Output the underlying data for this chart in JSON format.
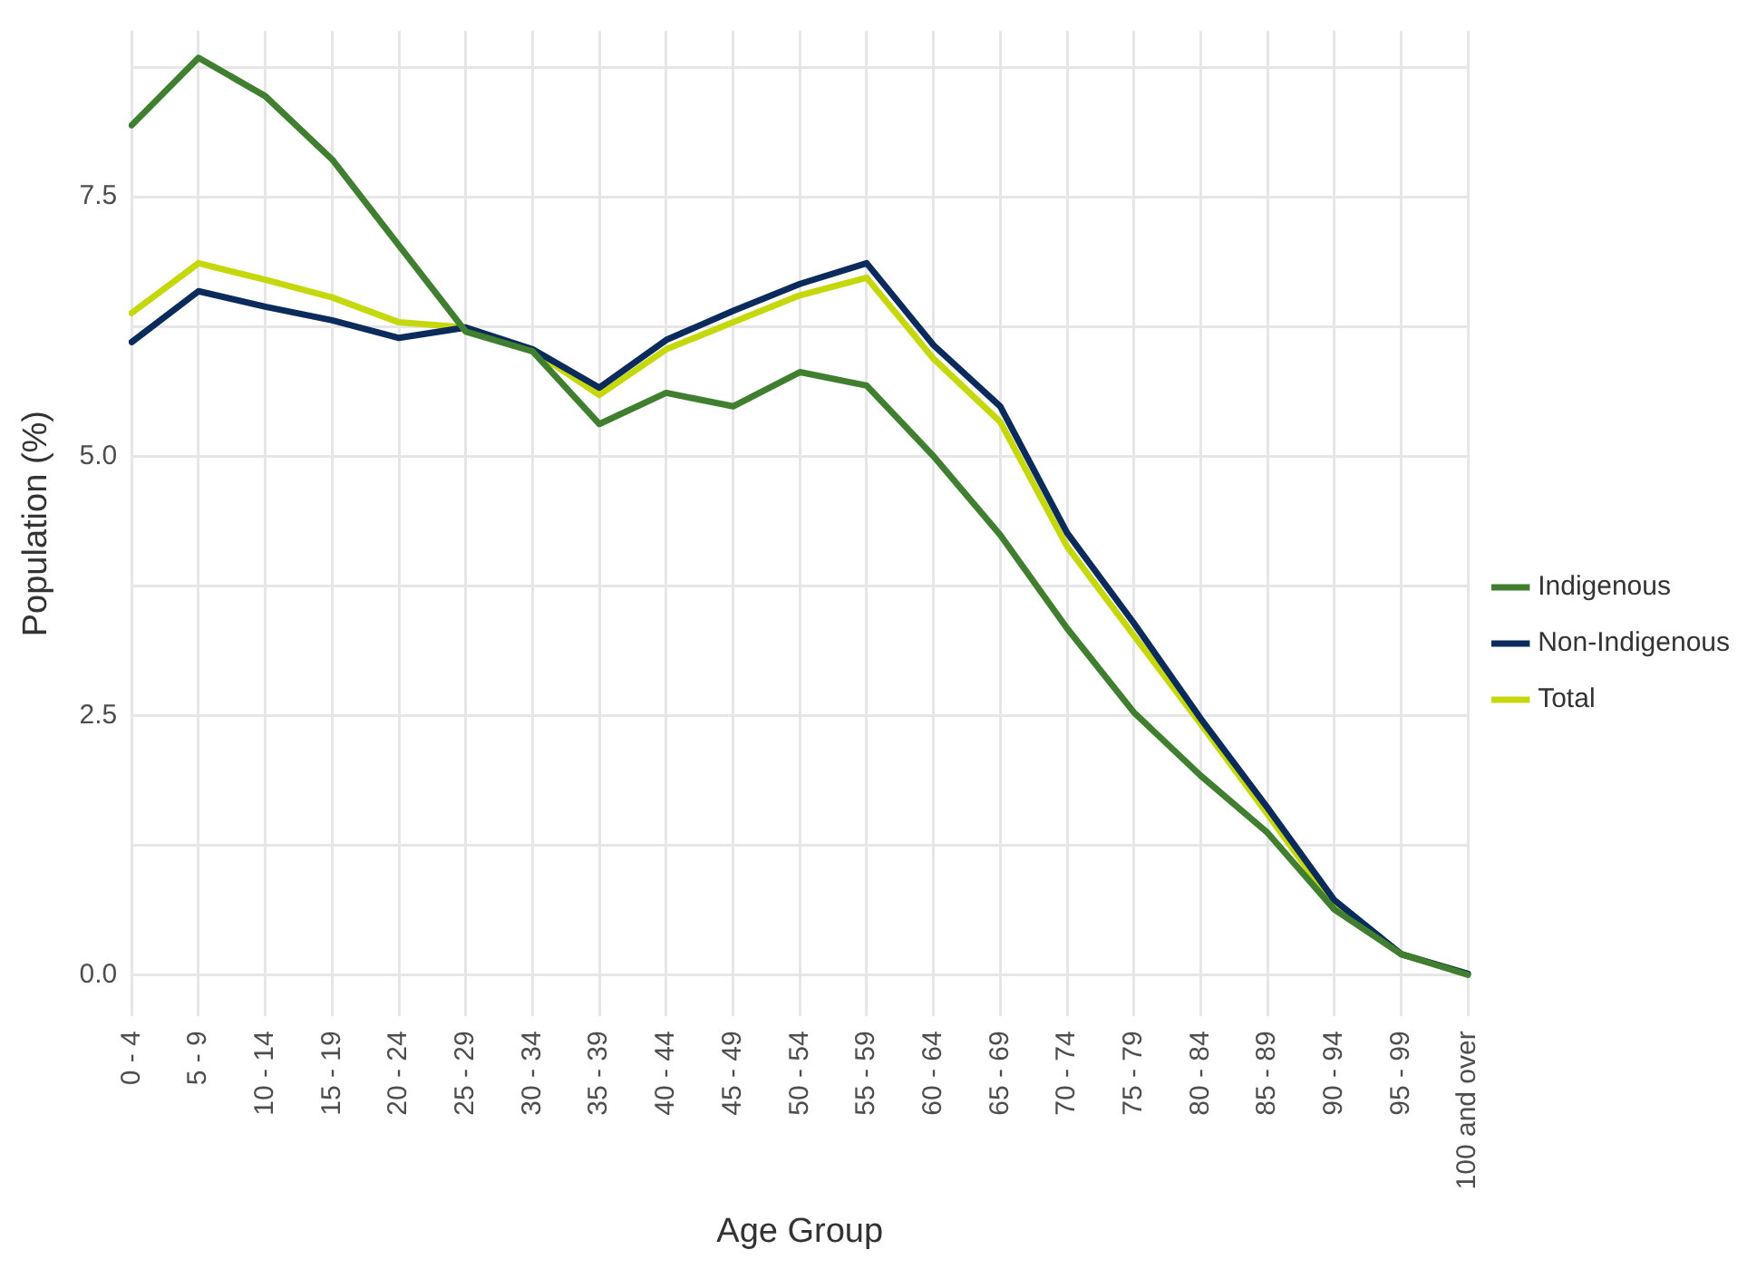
{
  "chart_data": {
    "type": "line",
    "xlabel": "Age Group",
    "ylabel": "Population (%)",
    "categories": [
      "0 - 4",
      "5 - 9",
      "10 - 14",
      "15 - 19",
      "20 - 24",
      "25 - 29",
      "30 - 34",
      "35 - 39",
      "40 - 44",
      "45 - 49",
      "50 - 54",
      "55 - 59",
      "60 - 64",
      "65 - 69",
      "70 - 74",
      "75 - 79",
      "80 - 84",
      "85 - 89",
      "90 - 94",
      "95 - 99",
      "100 and over"
    ],
    "series": [
      {
        "name": "Indigenous",
        "color": "#3f7f2f",
        "values": [
          8.19,
          8.84,
          8.47,
          7.86,
          7.03,
          6.2,
          6.01,
          5.31,
          5.61,
          5.48,
          5.81,
          5.68,
          5.0,
          4.24,
          3.34,
          2.53,
          1.92,
          1.37,
          0.63,
          0.2,
          0.0
        ]
      },
      {
        "name": "Non-Indigenous",
        "color": "#0a2b5c",
        "values": [
          6.1,
          6.59,
          6.44,
          6.31,
          6.14,
          6.24,
          6.03,
          5.66,
          6.12,
          6.4,
          6.66,
          6.86,
          6.07,
          5.48,
          4.26,
          3.39,
          2.47,
          1.61,
          0.72,
          0.2,
          0.01
        ]
      },
      {
        "name": "Total",
        "color": "#c5d80c",
        "values": [
          6.38,
          6.86,
          6.7,
          6.53,
          6.29,
          6.24,
          6.02,
          5.59,
          6.03,
          6.29,
          6.55,
          6.72,
          5.94,
          5.33,
          4.13,
          3.27,
          2.42,
          1.55,
          0.66,
          0.2,
          0.01
        ]
      }
    ],
    "ylim": [
      -0.4,
      9.1
    ],
    "yticks": [
      {
        "value": 0,
        "label": "0.0"
      },
      {
        "value": 1.25,
        "label": null
      },
      {
        "value": 2.5,
        "label": "2.5"
      },
      {
        "value": 3.75,
        "label": null
      },
      {
        "value": 5,
        "label": "5.0"
      },
      {
        "value": 6.25,
        "label": null
      },
      {
        "value": 7.5,
        "label": "7.5"
      },
      {
        "value": 8.75,
        "label": null
      }
    ],
    "grid": true,
    "legend": "right",
    "marker": "none",
    "line_style": "solid"
  }
}
